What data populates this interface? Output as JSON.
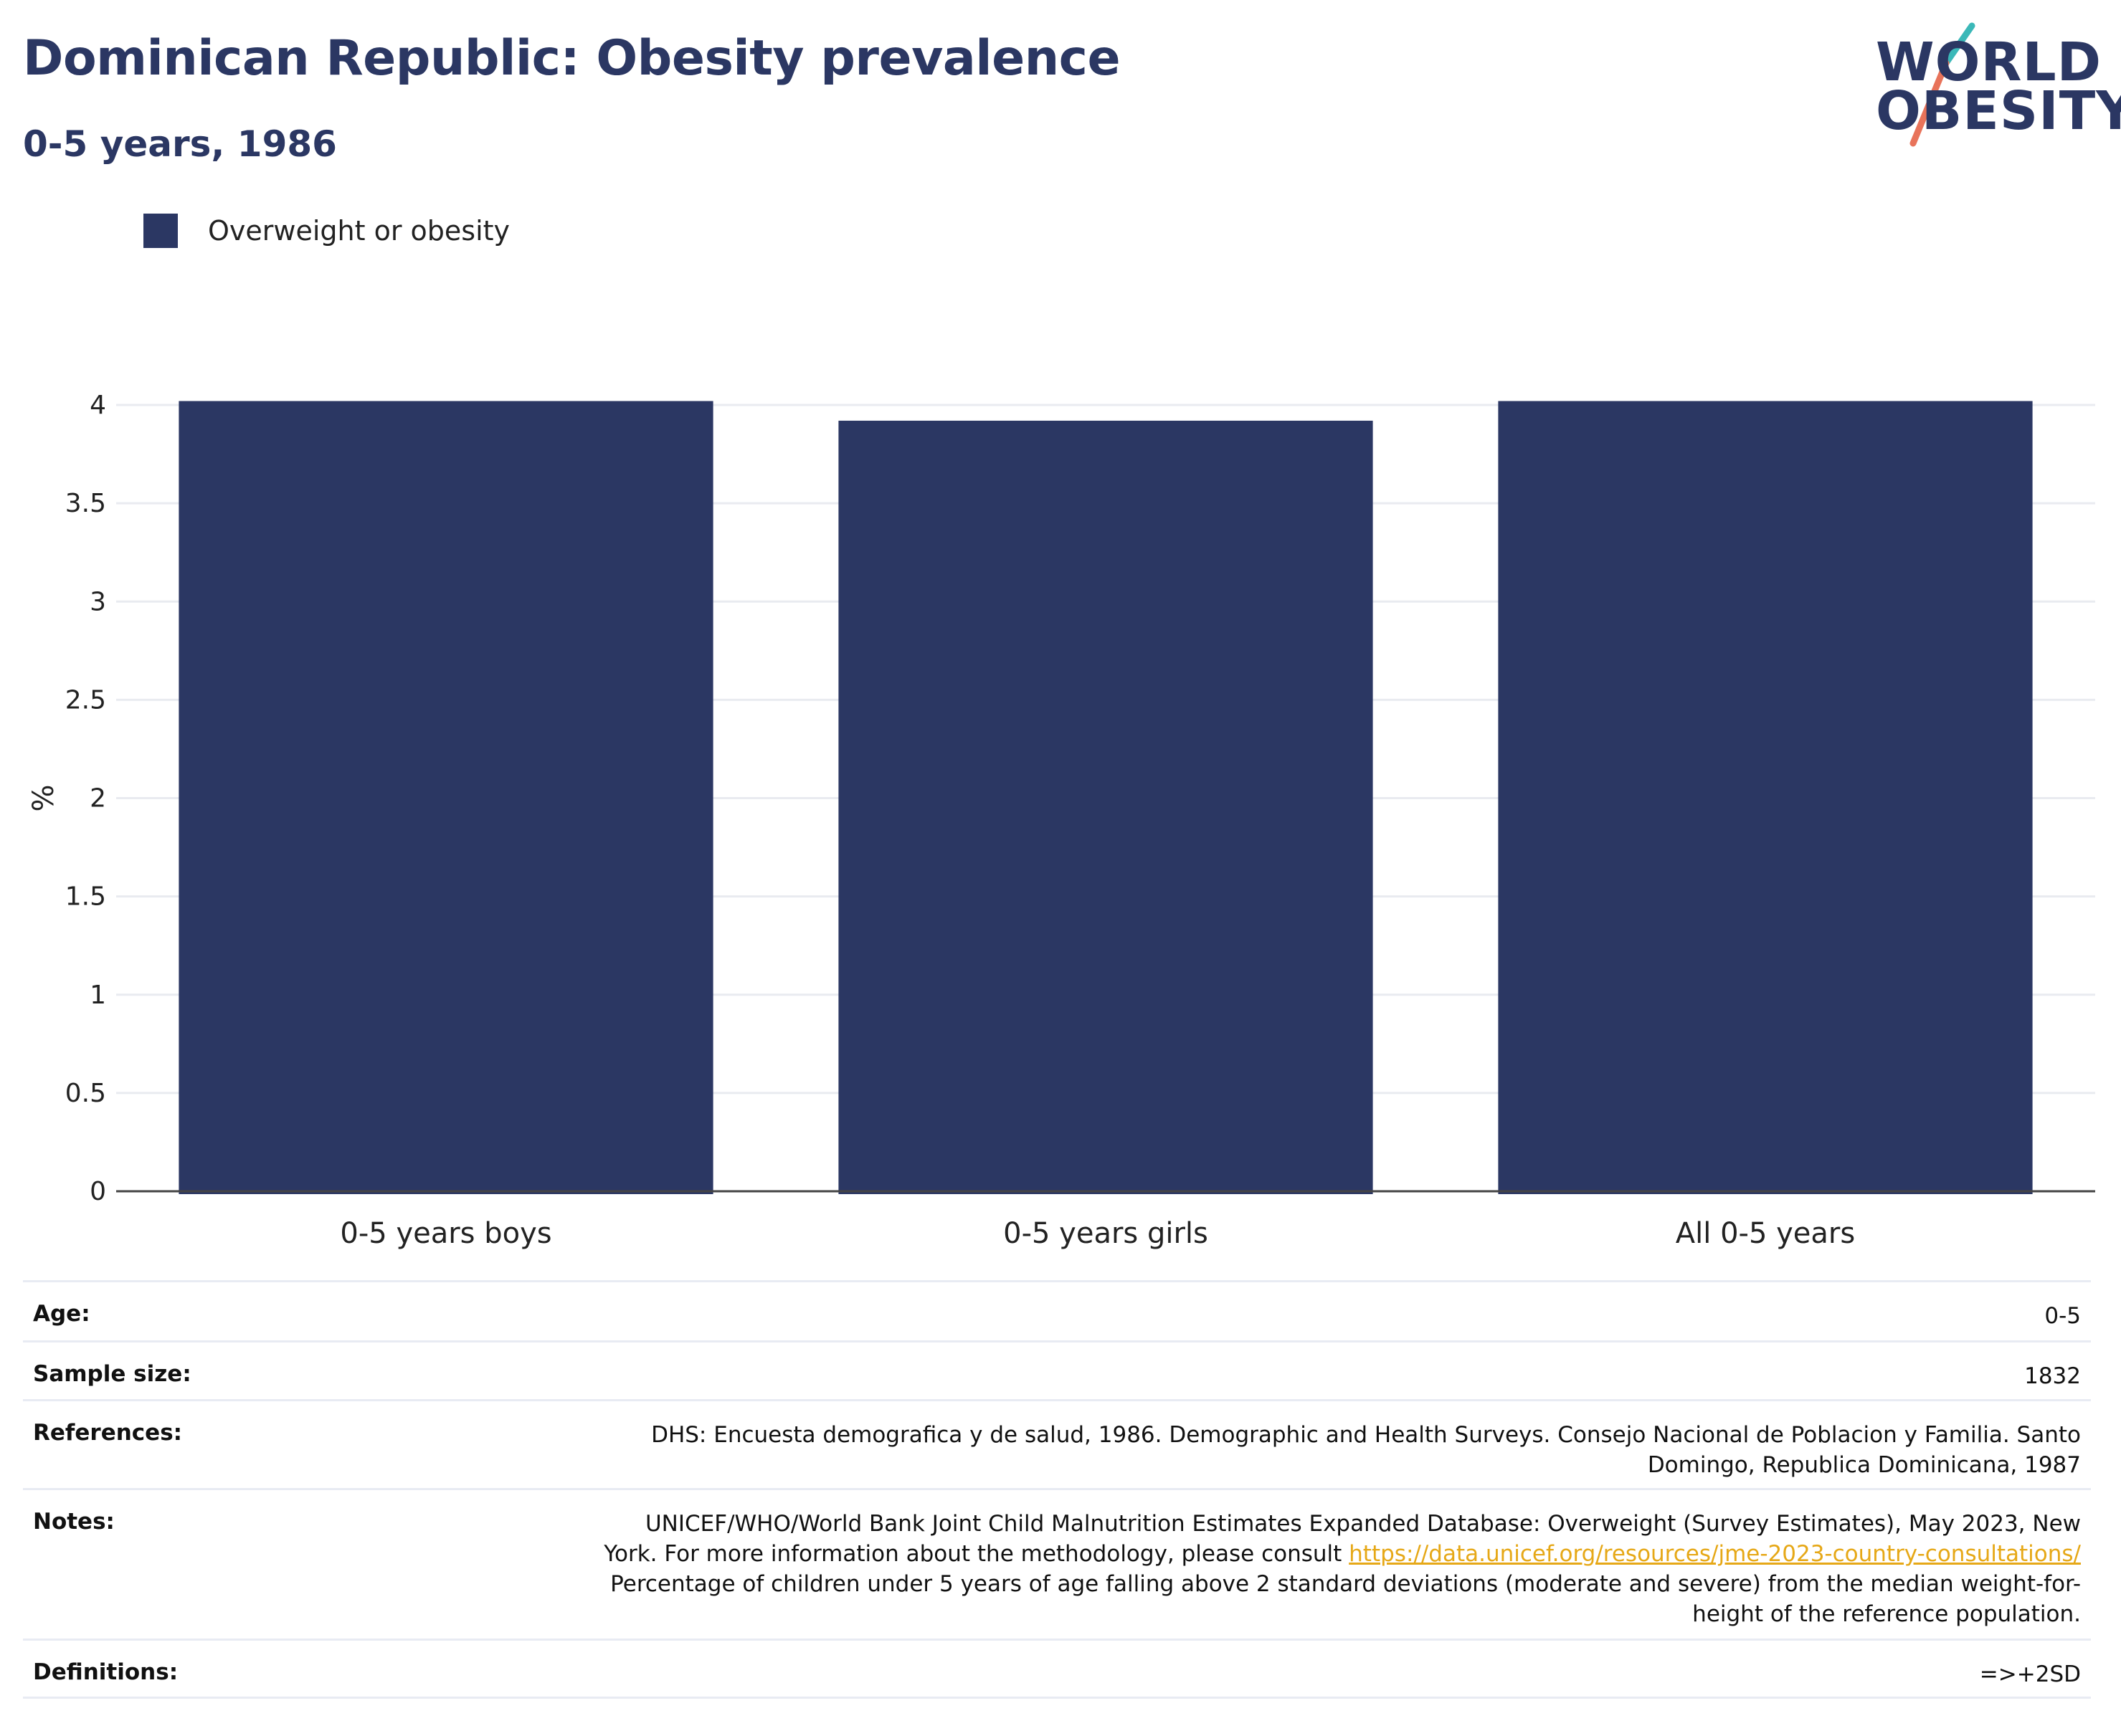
{
  "header": {
    "title": "Dominican Republic: Obesity prevalence",
    "subtitle": "0-5 years, 1986"
  },
  "logo": {
    "line1": "WORLD",
    "line2": "OBESITY",
    "colors": {
      "text": "#2b3763",
      "slash_top": "#3bb8b8",
      "slash_bottom": "#e8735a"
    }
  },
  "colors": {
    "bar": "#2b3763",
    "title": "#2b3763",
    "grid": "#e9ebf0",
    "axis": "#444444",
    "link": "#e6a817"
  },
  "chart_data": {
    "type": "bar",
    "categories": [
      "0-5 years boys",
      "0-5 years girls",
      "All 0-5 years"
    ],
    "series": [
      {
        "name": "Overweight or obesity",
        "values": [
          4.02,
          3.92,
          4.02
        ]
      }
    ],
    "title": "Dominican Republic: Obesity prevalence",
    "subtitle": "0-5 years, 1986",
    "xlabel": "",
    "ylabel": "%",
    "ylim": [
      0,
      4
    ],
    "yticks": [
      0,
      0.5,
      1,
      1.5,
      2,
      2.5,
      3,
      3.5,
      4
    ],
    "ytick_labels": [
      "0",
      "0.5",
      "1",
      "1.5",
      "2",
      "2.5",
      "3",
      "3.5",
      "4"
    ],
    "grid": true,
    "legend": "top-left"
  },
  "info": {
    "age": {
      "label": "Age:",
      "value": "0-5"
    },
    "sample_size": {
      "label": "Sample size:",
      "value": "1832"
    },
    "references": {
      "label": "References:",
      "value": "DHS: Encuesta demografica y de salud, 1986. Demographic and Health Surveys. Consejo Nacional de Poblacion y Familia. Santo Domingo, Republica Dominicana, 1987"
    },
    "notes": {
      "label": "Notes:",
      "text_before": "UNICEF/WHO/World Bank Joint Child Malnutrition Estimates Expanded Database: Overweight (Survey Estimates), May 2023, New York. For more information about the methodology, please consult ",
      "link": "https://data.unicef.org/resources/jme-2023-country-consultations/",
      "text_after": " Percentage of children under 5 years of age falling above 2 standard deviations (moderate and severe) from the median weight-for-height of the reference population."
    },
    "definitions": {
      "label": "Definitions:",
      "value": "=>+2SD"
    }
  }
}
